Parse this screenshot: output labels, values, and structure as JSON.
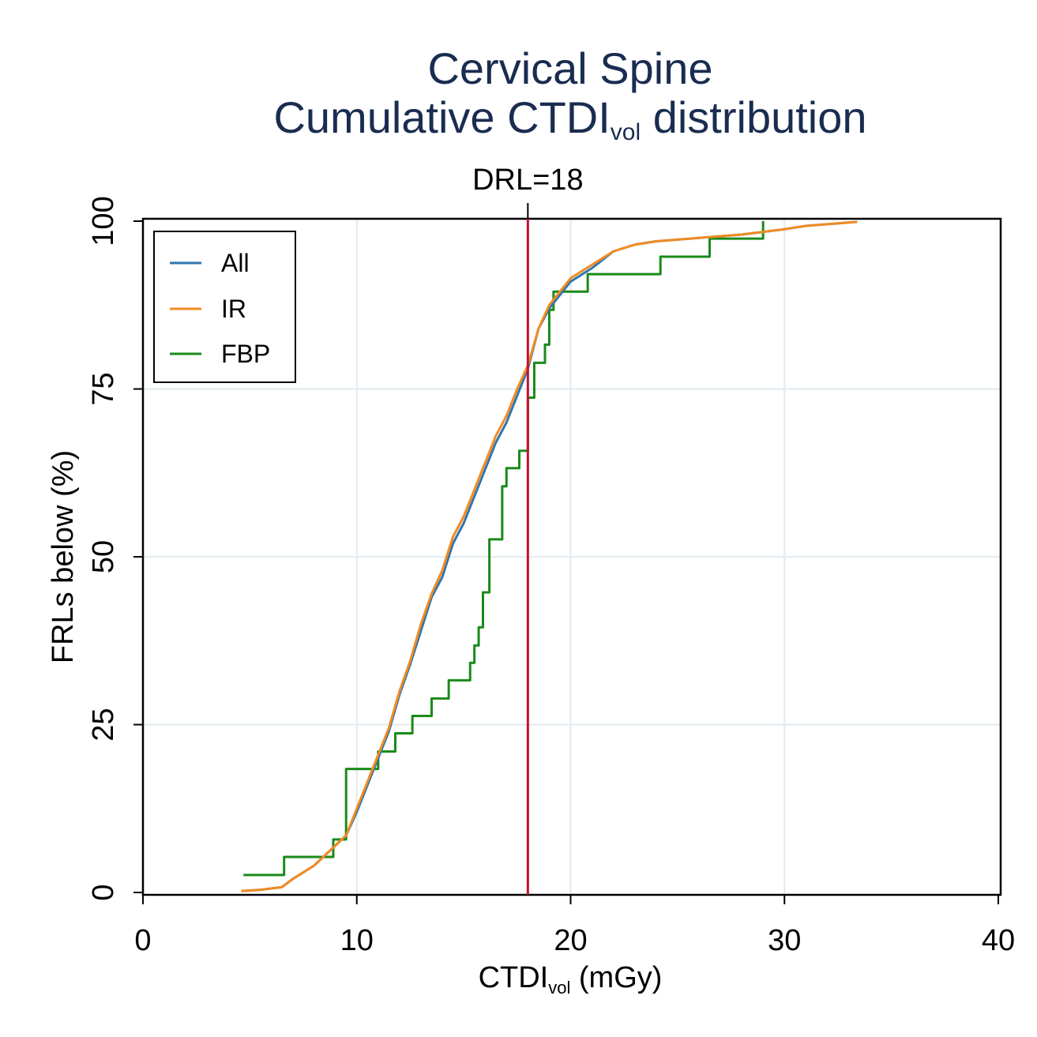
{
  "chart_data": {
    "type": "line",
    "title_line1": "Cervical Spine",
    "title_line2_main": "Cumulative CTDI",
    "title_line2_sub": "vol",
    "title_line2_end": " distribution",
    "xlabel_main": "CTDI",
    "xlabel_sub": "vol",
    "xlabel_end": " (mGy)",
    "ylabel": "FRLs below (%)",
    "xlim": [
      0,
      40
    ],
    "ylim": [
      0,
      100
    ],
    "x_ticks": [
      0,
      10,
      20,
      30,
      40
    ],
    "y_ticks": [
      0,
      25,
      50,
      75,
      100
    ],
    "x_tick_labels": [
      "0",
      "10",
      "20",
      "30",
      "40"
    ],
    "y_tick_labels": [
      "0",
      "25",
      "50",
      "75",
      "100"
    ],
    "grid": true,
    "legend_position": "top-left",
    "reference_line": {
      "x": 18,
      "label": "DRL=18",
      "color": "#c8102e"
    },
    "series": [
      {
        "name": "All",
        "color": "#2e76b0",
        "step": false,
        "x": [
          4.6,
          5.5,
          6.5,
          7.0,
          8.0,
          9.0,
          9.5,
          10.0,
          10.5,
          11.0,
          11.5,
          12.0,
          12.5,
          13.0,
          13.5,
          14.0,
          14.5,
          15.0,
          15.5,
          16.0,
          16.5,
          17.0,
          17.5,
          18.0,
          18.5,
          19.0,
          19.5,
          20.0,
          21.0,
          22.0,
          23.0,
          24.0,
          26.0,
          28.0,
          30.0,
          31.0,
          33.4
        ],
        "y": [
          0.2,
          0.4,
          0.8,
          2.0,
          4.0,
          7.0,
          8.5,
          12.0,
          16.0,
          20.0,
          24.0,
          29.5,
          34.0,
          39.0,
          44.0,
          47.0,
          52.0,
          55.0,
          59.0,
          63.0,
          67.0,
          70.0,
          74.0,
          78.0,
          84.0,
          87.0,
          89.0,
          91.0,
          93.0,
          95.5,
          96.5,
          97.0,
          97.5,
          98.0,
          98.8,
          99.3,
          99.9
        ]
      },
      {
        "name": "IR",
        "color": "#f28b20",
        "step": false,
        "x": [
          4.6,
          5.5,
          6.5,
          7.0,
          8.0,
          9.0,
          9.5,
          10.0,
          10.5,
          11.0,
          11.5,
          12.0,
          12.5,
          13.0,
          13.5,
          14.0,
          14.5,
          15.0,
          15.5,
          16.0,
          16.5,
          17.0,
          17.5,
          18.0,
          18.5,
          19.0,
          19.5,
          20.0,
          21.0,
          22.0,
          23.0,
          24.0,
          26.0,
          28.0,
          30.0,
          31.0,
          33.4
        ],
        "y": [
          0.2,
          0.4,
          0.8,
          2.0,
          4.0,
          7.0,
          8.5,
          12.5,
          16.5,
          20.5,
          24.5,
          30.0,
          34.5,
          40.0,
          44.5,
          48.0,
          53.0,
          56.0,
          60.0,
          64.0,
          68.0,
          71.0,
          75.0,
          78.5,
          84.0,
          87.5,
          89.5,
          91.5,
          93.5,
          95.5,
          96.5,
          97.0,
          97.5,
          98.0,
          98.8,
          99.3,
          99.9
        ]
      },
      {
        "name": "FBP",
        "color": "#1a8a1a",
        "step": true,
        "x": [
          4.7,
          6.6,
          8.9,
          9.5,
          11.0,
          11.8,
          12.6,
          13.5,
          14.3,
          15.3,
          15.5,
          15.7,
          15.9,
          16.2,
          16.8,
          17.0,
          17.6,
          18.0,
          18.3,
          18.8,
          19.0,
          19.2,
          20.8,
          24.2,
          26.5,
          29.0
        ],
        "y": [
          2.6,
          5.3,
          7.9,
          18.4,
          21.0,
          23.7,
          26.3,
          28.9,
          31.6,
          34.2,
          36.8,
          39.5,
          44.7,
          52.6,
          60.5,
          63.2,
          65.8,
          73.7,
          78.9,
          81.6,
          86.8,
          89.5,
          92.1,
          94.7,
          97.4,
          100.0
        ]
      }
    ]
  }
}
